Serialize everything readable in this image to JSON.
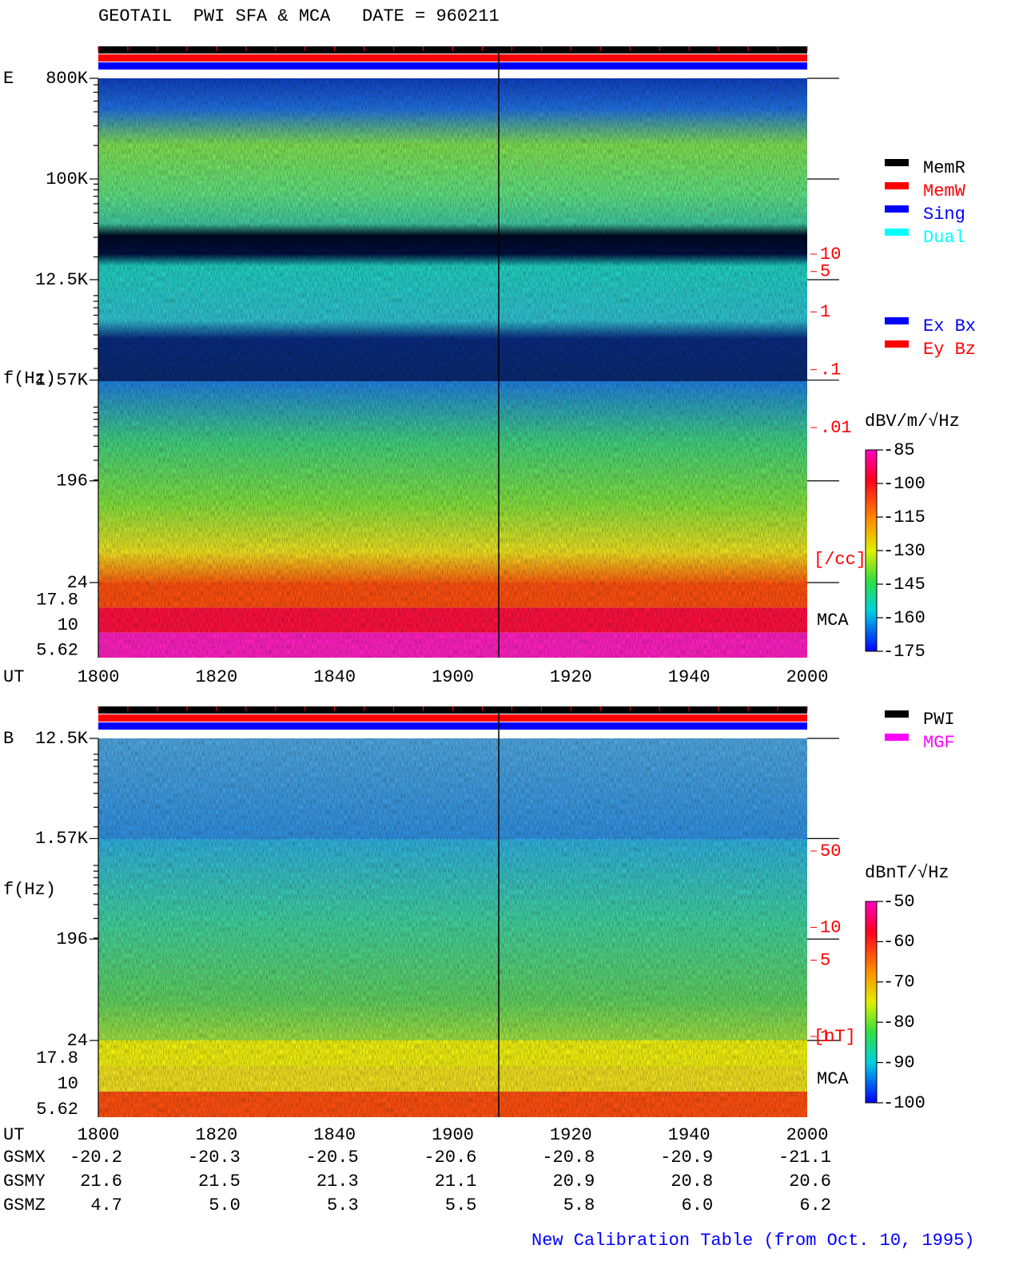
{
  "header": {
    "title": "GEOTAIL  PWI SFA & MCA   DATE = 960211"
  },
  "chart_data": [
    {
      "type": "spectrogram",
      "panel": "E",
      "y_label": "f(Hz)",
      "x_label": "UT",
      "log_y": true,
      "ylim": [
        24,
        800000
      ],
      "yticks": [
        {
          "value": 800000,
          "label": "800K"
        },
        {
          "value": 100000,
          "label": "100K"
        },
        {
          "value": 12500,
          "label": "12.5K"
        },
        {
          "value": 1570,
          "label": "1.57K"
        },
        196,
        24
      ],
      "mca_label": "MCA",
      "mca_channels": [
        17.8,
        10,
        5.62
      ],
      "x": [
        "1800",
        "1820",
        "1840",
        "1900",
        "1920",
        "1940",
        "2000"
      ],
      "y2_label": "[/cc]",
      "y2_color": "#ff0000",
      "y2lim": [
        0.01,
        10
      ],
      "y2ticks": [
        10,
        5,
        1,
        {
          "value": 0.1,
          "label": ".1"
        },
        {
          "value": 0.01,
          "label": ".01"
        }
      ],
      "colorbar_label": "dBV/m/√Hz",
      "clim": [
        -175,
        -85
      ],
      "cticks": [
        -85,
        -100,
        -115,
        -130,
        -145,
        -160,
        -175
      ],
      "legends": [
        [
          {
            "name": "MemR",
            "color": "#000000"
          },
          {
            "name": "MemW",
            "color": "#ff0000"
          },
          {
            "name": "Sing",
            "color": "#0000ff"
          },
          {
            "name": "Dual",
            "color": "#00ffff"
          }
        ],
        [
          {
            "name": "Ex Bx",
            "color": "#0000ff"
          },
          {
            "name": "Ey Bz",
            "color": "#ff0000"
          }
        ]
      ]
    },
    {
      "type": "spectrogram",
      "panel": "B",
      "y_label": "f(Hz)",
      "x_label": "UT",
      "log_y": true,
      "ylim": [
        24,
        12500
      ],
      "yticks": [
        {
          "value": 12500,
          "label": "12.5K"
        },
        {
          "value": 1570,
          "label": "1.57K"
        },
        196,
        24
      ],
      "mca_label": "MCA",
      "mca_channels": [
        17.8,
        10,
        5.62
      ],
      "x": [
        "1800",
        "1820",
        "1840",
        "1900",
        "1920",
        "1940",
        "2000"
      ],
      "y2_label": "[nT]",
      "y2_color": "#ff0000",
      "y2lim": [
        1,
        50
      ],
      "y2ticks": [
        50,
        10,
        5,
        1
      ],
      "colorbar_label": "dBnT/√Hz",
      "clim": [
        -100,
        -50
      ],
      "cticks": [
        -50,
        -60,
        -70,
        -80,
        -90,
        -100
      ],
      "legends": [
        [
          {
            "name": "PWI",
            "color": "#000000"
          },
          {
            "name": "MGF",
            "color": "#ff00ff"
          }
        ]
      ]
    }
  ],
  "orbit": {
    "rows": [
      {
        "name": "GSMX",
        "values": [
          "-20.2",
          "-20.3",
          "-20.5",
          "-20.6",
          "-20.8",
          "-20.9",
          "-21.1"
        ]
      },
      {
        "name": "GSMY",
        "values": [
          "21.6",
          "21.5",
          "21.3",
          "21.1",
          "20.9",
          "20.8",
          "20.6"
        ]
      },
      {
        "name": "GSMZ",
        "values": [
          "4.7",
          "5.0",
          "5.3",
          "5.5",
          "5.8",
          "6.0",
          "6.2"
        ]
      }
    ]
  },
  "footer": {
    "note": "New Calibration Table (from Oct. 10, 1995)"
  }
}
